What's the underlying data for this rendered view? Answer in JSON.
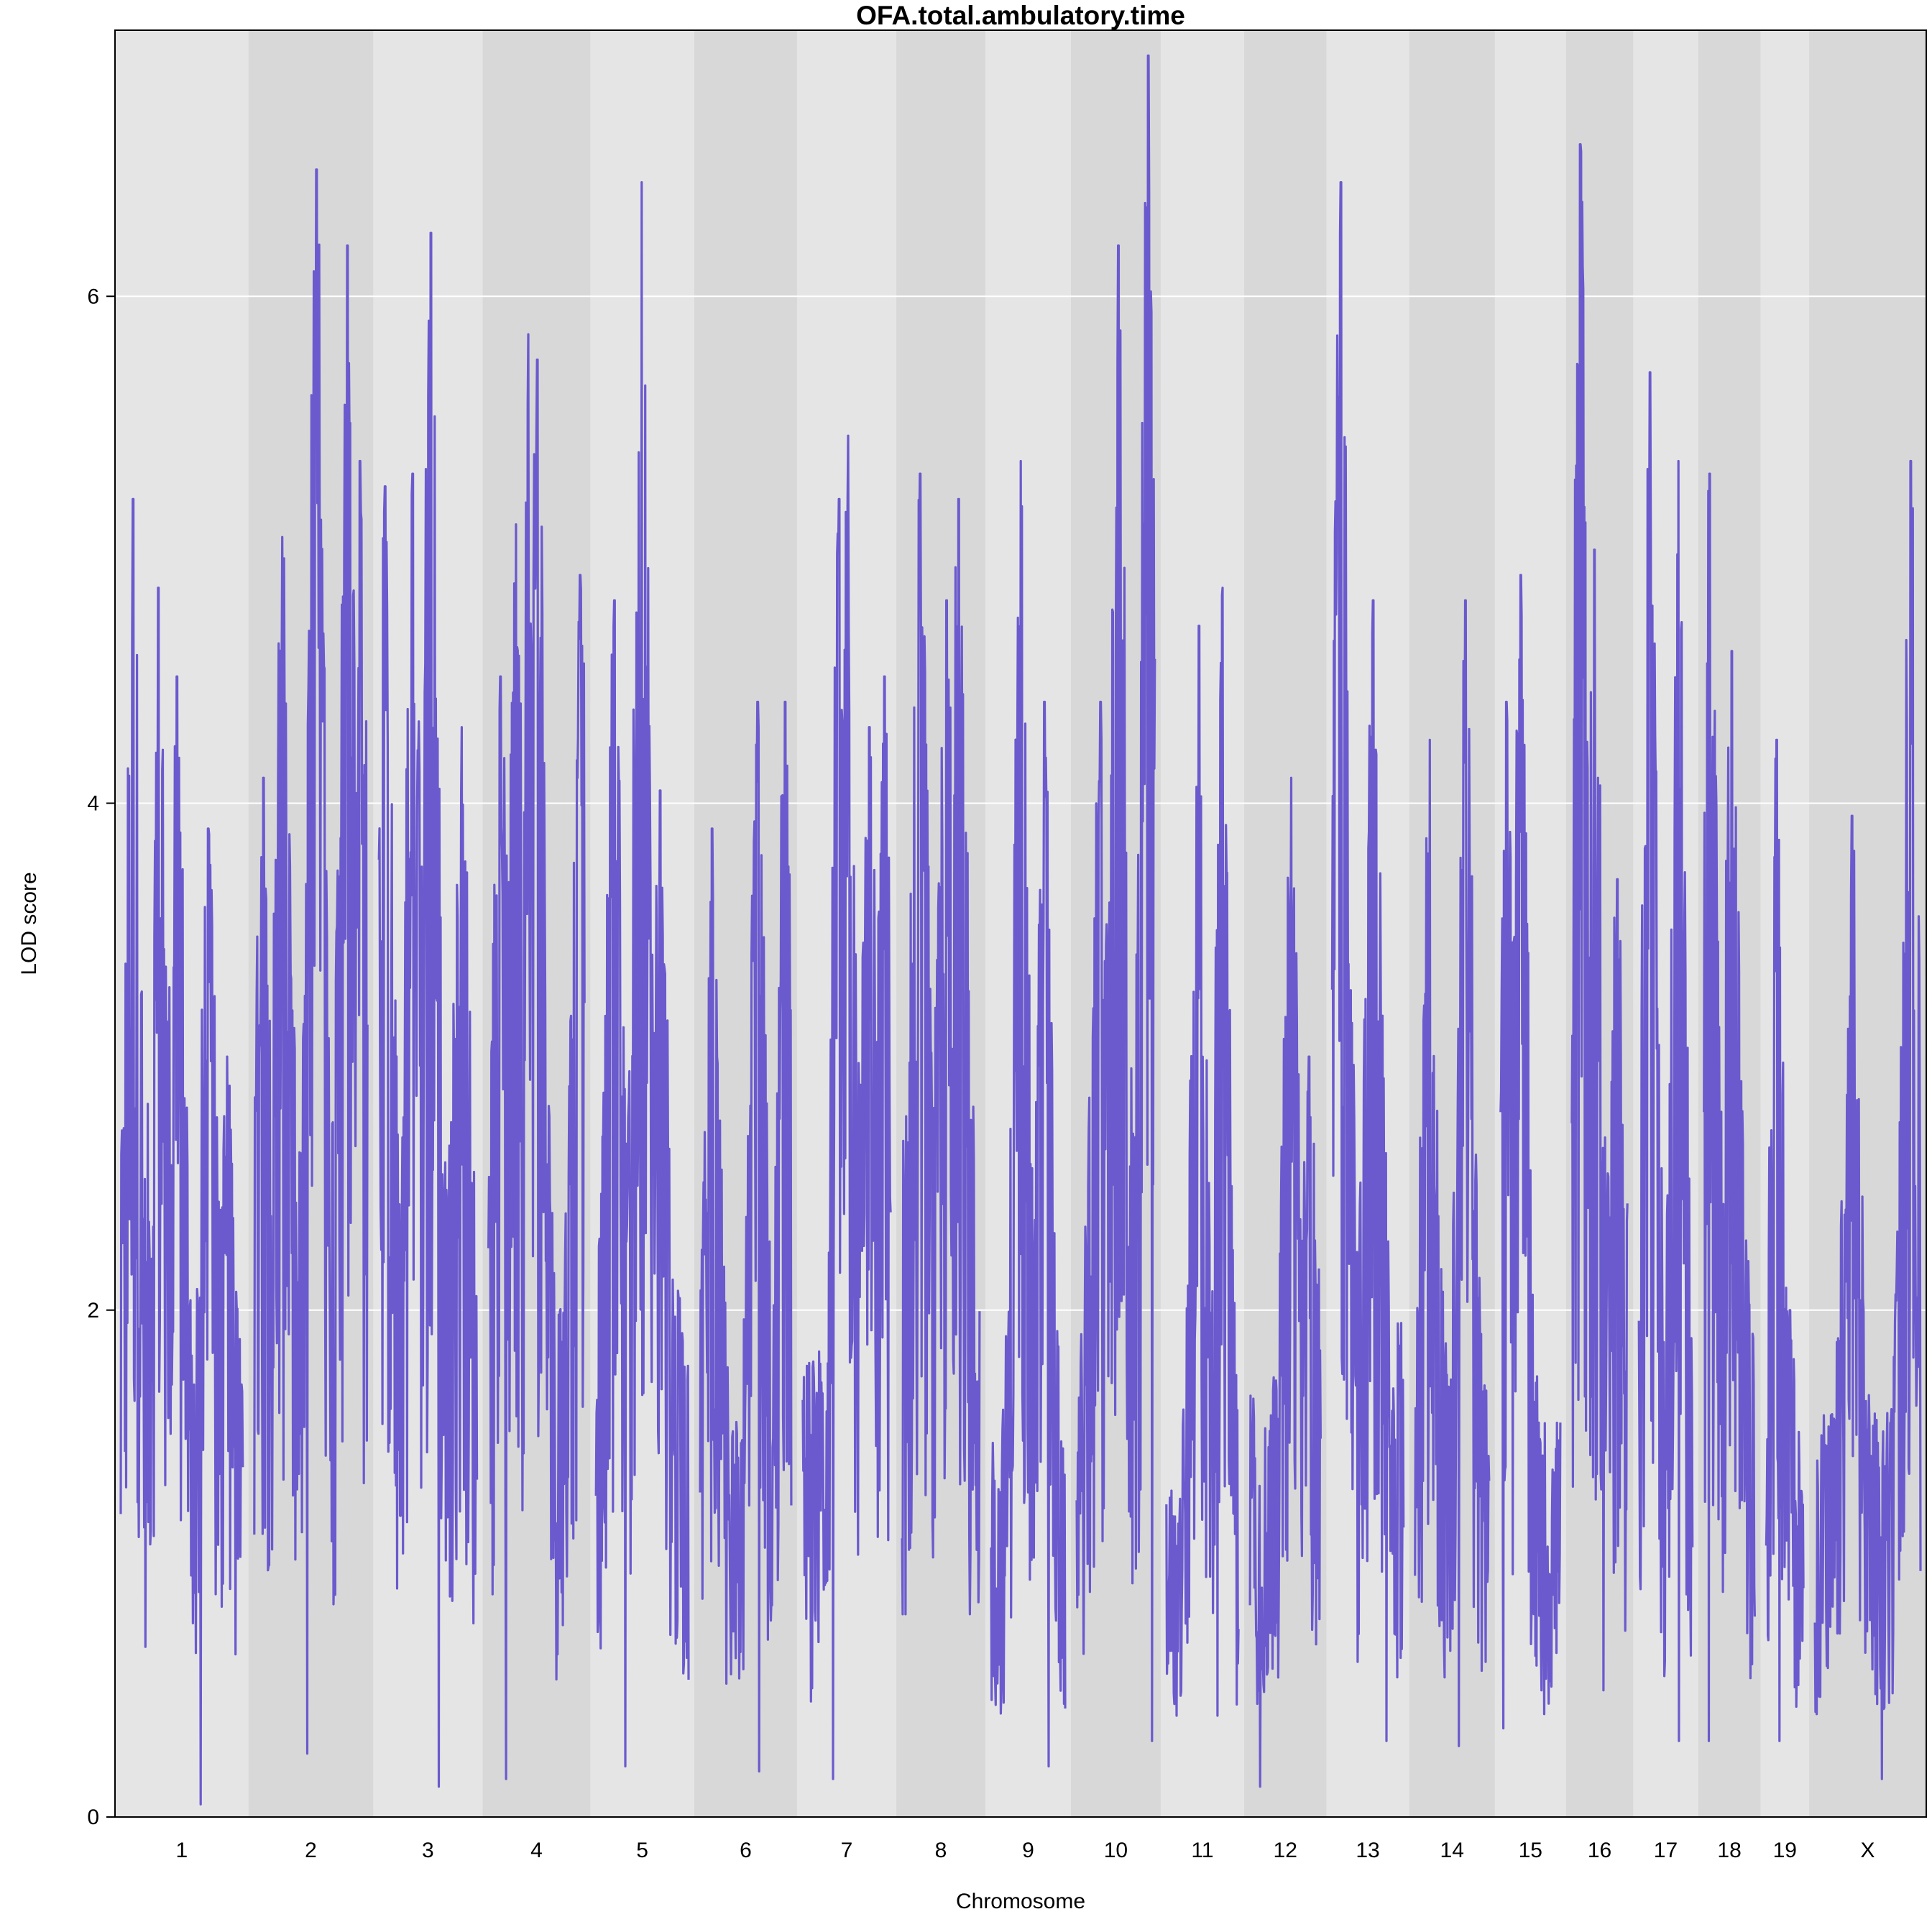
{
  "chart_data": {
    "type": "line",
    "title": "OFA.total.ambulatory.time",
    "xlabel": "Chromosome",
    "ylabel": "LOD score",
    "ylim": [
      0,
      7.05
    ],
    "yticks": [
      0,
      2,
      4,
      6
    ],
    "grid": "horizontal",
    "colors": {
      "line": "#6a5acd",
      "band_light": "#e5e5e5",
      "band_dark": "#d8d8d8",
      "gridline": "#ffffff"
    },
    "categories": [
      "1",
      "2",
      "3",
      "4",
      "5",
      "6",
      "7",
      "8",
      "9",
      "10",
      "11",
      "12",
      "13",
      "14",
      "15",
      "16",
      "17",
      "18",
      "19",
      "X"
    ],
    "chromosome_span_mb": [
      195,
      182,
      160,
      157,
      152,
      150,
      145,
      130,
      125,
      131,
      122,
      120,
      121,
      125,
      104,
      98,
      95,
      91,
      71,
      171
    ],
    "series": [
      {
        "values_per_chromosome": [
          {
            "chr": "1",
            "peaks": [
              [
                20,
                5.2
              ],
              [
                60,
                4.85
              ],
              [
                90,
                4.5
              ],
              [
                140,
                3.9
              ],
              [
                170,
                3.0
              ]
            ],
            "min": 0.05,
            "base": 1.6
          },
          {
            "chr": "2",
            "peaks": [
              [
                15,
                4.1
              ],
              [
                45,
                5.05
              ],
              [
                100,
                6.5
              ],
              [
                150,
                6.2
              ],
              [
                170,
                5.35
              ]
            ],
            "min": 0.25,
            "base": 2.4
          },
          {
            "chr": "3",
            "peaks": [
              [
                10,
                5.25
              ],
              [
                55,
                5.3
              ],
              [
                85,
                6.25
              ],
              [
                135,
                4.3
              ]
            ],
            "min": 0.12,
            "base": 2.2
          },
          {
            "chr": "4",
            "peaks": [
              [
                20,
                4.5
              ],
              [
                45,
                5.1
              ],
              [
                65,
                5.85
              ],
              [
                80,
                5.75
              ],
              [
                150,
                4.9
              ]
            ],
            "min": 0.15,
            "base": 2.0
          },
          {
            "chr": "5",
            "peaks": [
              [
                30,
                4.8
              ],
              [
                75,
                6.45
              ],
              [
                105,
                4.05
              ]
            ],
            "min": 0.2,
            "base": 2.0
          },
          {
            "chr": "6",
            "peaks": [
              [
                20,
                3.9
              ],
              [
                95,
                4.4
              ],
              [
                140,
                4.4
              ]
            ],
            "min": 0.18,
            "base": 1.6
          },
          {
            "chr": "7",
            "peaks": [
              [
                60,
                5.2
              ],
              [
                75,
                5.45
              ],
              [
                110,
                4.3
              ],
              [
                135,
                4.5
              ]
            ],
            "min": 0.15,
            "base": 1.8
          },
          {
            "chr": "8",
            "peaks": [
              [
                30,
                5.3
              ],
              [
                75,
                4.8
              ],
              [
                95,
                5.2
              ]
            ],
            "min": 0.8,
            "base": 2.6
          },
          {
            "chr": "9",
            "peaks": [
              [
                50,
                5.35
              ],
              [
                90,
                4.4
              ]
            ],
            "min": 0.2,
            "base": 1.5
          },
          {
            "chr": "10",
            "peaks": [
              [
                40,
                4.4
              ],
              [
                70,
                6.2
              ],
              [
                120,
                6.95
              ]
            ],
            "min": 0.3,
            "base": 2.2
          },
          {
            "chr": "11",
            "peaks": [
              [
                55,
                4.7
              ],
              [
                95,
                4.85
              ]
            ],
            "min": 0.4,
            "base": 1.3
          },
          {
            "chr": "12",
            "peaks": [
              [
                70,
                4.1
              ],
              [
                100,
                3.0
              ]
            ],
            "min": 0.12,
            "base": 1.7
          },
          {
            "chr": "13",
            "peaks": [
              [
                10,
                5.4
              ],
              [
                15,
                6.45
              ],
              [
                70,
                4.8
              ]
            ],
            "min": 0.3,
            "base": 2.1
          },
          {
            "chr": "14",
            "peaks": [
              [
                25,
                4.25
              ],
              [
                85,
                4.8
              ]
            ],
            "min": 0.28,
            "base": 1.7
          },
          {
            "chr": "15",
            "peaks": [
              [
                10,
                4.4
              ],
              [
                35,
                4.9
              ]
            ],
            "min": 0.35,
            "base": 1.6
          },
          {
            "chr": "16",
            "peaks": [
              [
                15,
                6.6
              ],
              [
                40,
                5.0
              ],
              [
                80,
                3.7
              ]
            ],
            "min": 0.5,
            "base": 2.0
          },
          {
            "chr": "17",
            "peaks": [
              [
                20,
                5.7
              ],
              [
                70,
                5.35
              ]
            ],
            "min": 0.3,
            "base": 1.6
          },
          {
            "chr": "18",
            "peaks": [
              [
                10,
                5.3
              ],
              [
                50,
                4.6
              ]
            ],
            "min": 0.3,
            "base": 2.1
          },
          {
            "chr": "19",
            "peaks": [
              [
                20,
                4.25
              ],
              [
                45,
                2.0
              ]
            ],
            "min": 0.3,
            "base": 1.3
          },
          {
            "chr": "X",
            "peaks": [
              [
                60,
                3.95
              ],
              [
                155,
                5.35
              ]
            ],
            "min": 0.15,
            "base": 1.6
          }
        ]
      }
    ]
  }
}
